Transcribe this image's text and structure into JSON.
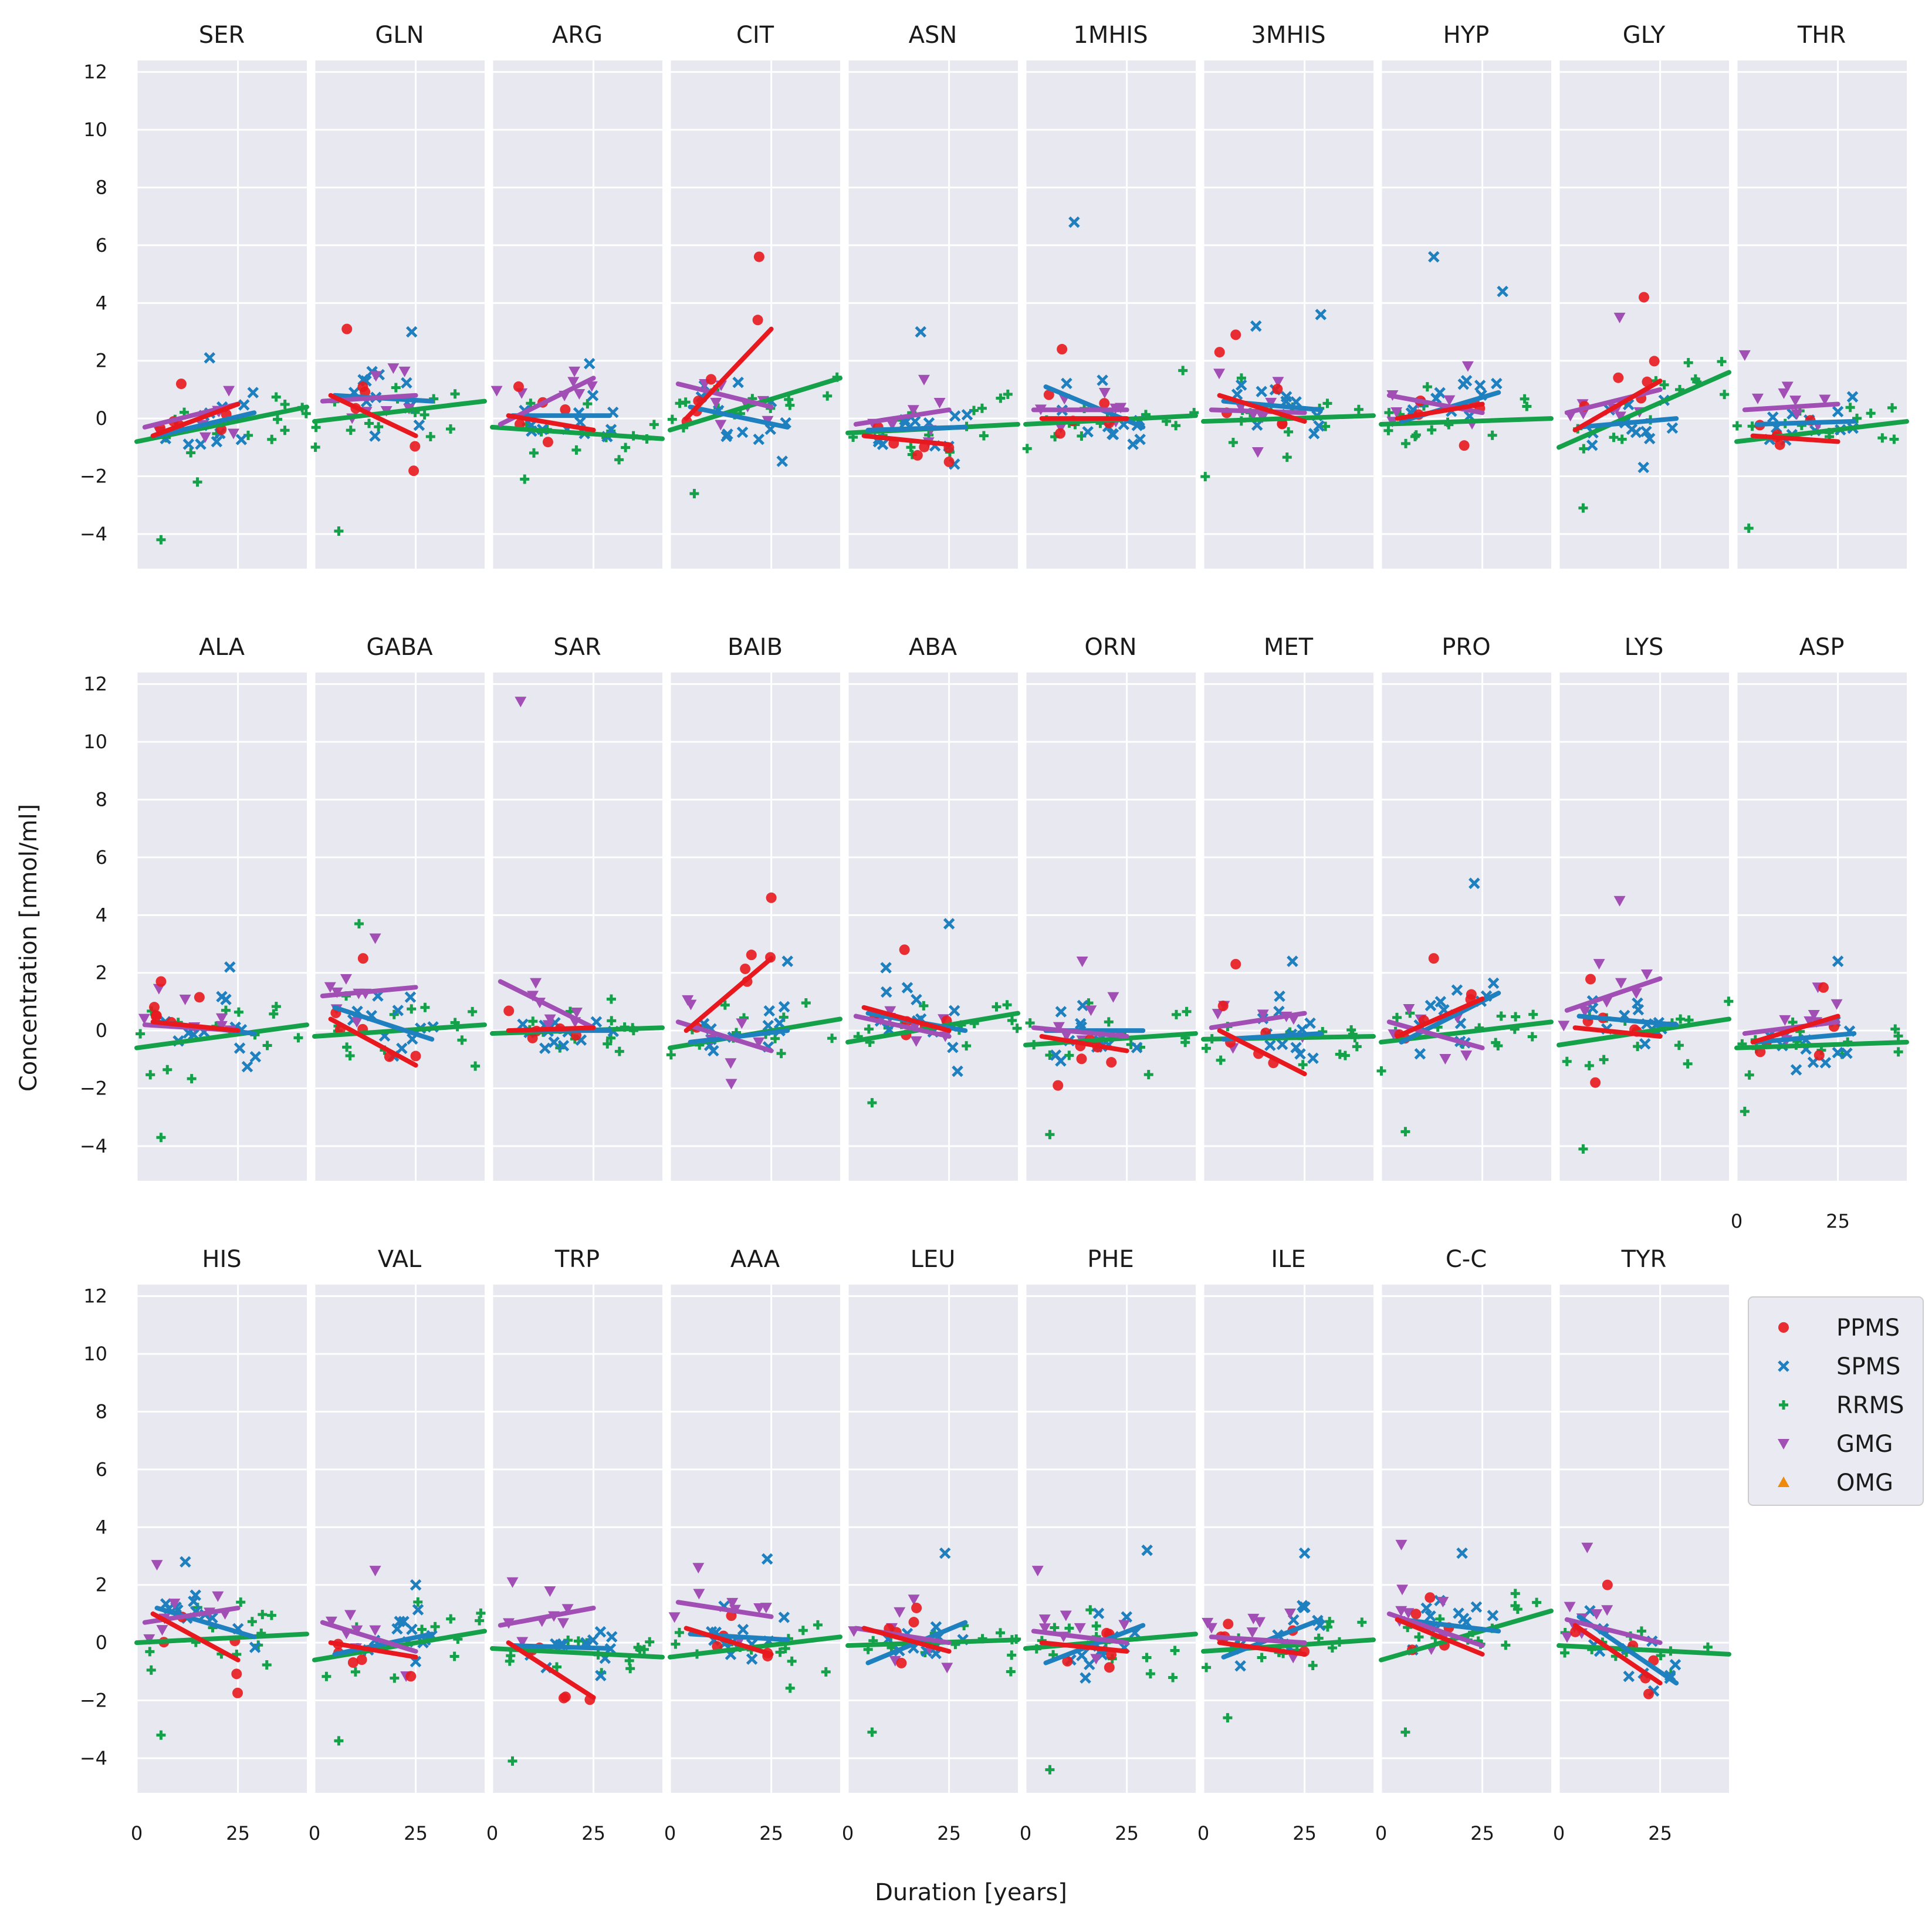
{
  "chart_data": {
    "type": "scatter",
    "description_axes": {
      "xlabel": "Duration [years]",
      "ylabel": "Concentration [nmol/ml]",
      "ylim": [
        -5.2,
        12.4
      ],
      "xlim": [
        0,
        42
      ],
      "yticks": [
        -4,
        -2,
        0,
        2,
        4,
        6,
        8,
        10,
        12
      ],
      "xticks": [
        0,
        25
      ]
    },
    "legend": {
      "placement": "right",
      "entries": [
        {
          "name": "PPMS",
          "color": "#e8191e",
          "marker": "circle"
        },
        {
          "name": "SPMS",
          "color": "#1f80c0",
          "marker": "x"
        },
        {
          "name": "RRMS",
          "color": "#14a14a",
          "marker": "plus"
        },
        {
          "name": "GMG",
          "color": "#a24fb5",
          "marker": "triangle-down"
        },
        {
          "name": "OMG",
          "color": "#f08a0a",
          "marker": "triangle-up"
        }
      ]
    },
    "panels": [
      {
        "name": "SER",
        "fits": {
          "PPMS": [
            -0.6,
            0.5
          ],
          "SPMS": [
            -0.6,
            0.2
          ],
          "RRMS": [
            -0.8,
            0.4
          ],
          "GMG": [
            -0.3,
            0.5
          ]
        },
        "extremes": [
          {
            "g": "RRMS",
            "x": 6,
            "y": -4.2
          },
          {
            "g": "PPMS",
            "x": 11,
            "y": 1.2
          },
          {
            "g": "SPMS",
            "x": 18,
            "y": 2.1
          },
          {
            "g": "RRMS",
            "x": 15,
            "y": -2.2
          }
        ]
      },
      {
        "name": "GLN",
        "fits": {
          "PPMS": [
            0.8,
            -0.6
          ],
          "SPMS": [
            0.8,
            0.6
          ],
          "RRMS": [
            -0.1,
            0.6
          ],
          "GMG": [
            0.6,
            0.8
          ]
        },
        "extremes": [
          {
            "g": "RRMS",
            "x": 6,
            "y": -3.9
          },
          {
            "g": "PPMS",
            "x": 8,
            "y": 3.1
          },
          {
            "g": "SPMS",
            "x": 24,
            "y": 3.0
          }
        ]
      },
      {
        "name": "ARG",
        "fits": {
          "PPMS": [
            0.1,
            -0.4
          ],
          "SPMS": [
            0.1,
            0.1
          ],
          "RRMS": [
            -0.3,
            -0.7
          ],
          "GMG": [
            -0.2,
            1.4
          ]
        },
        "extremes": [
          {
            "g": "RRMS",
            "x": 8,
            "y": -2.1
          },
          {
            "g": "SPMS",
            "x": 24,
            "y": 1.9
          }
        ]
      },
      {
        "name": "CIT",
        "fits": {
          "PPMS": [
            0.0,
            3.1
          ],
          "SPMS": [
            0.4,
            -0.3
          ],
          "RRMS": [
            -0.4,
            1.4
          ],
          "GMG": [
            1.2,
            0.4
          ]
        },
        "extremes": [
          {
            "g": "PPMS",
            "x": 22,
            "y": 5.6
          },
          {
            "g": "RRMS",
            "x": 6,
            "y": -2.6
          }
        ]
      },
      {
        "name": "ASN",
        "fits": {
          "PPMS": [
            -0.6,
            -0.9
          ],
          "SPMS": [
            -0.4,
            -0.3
          ],
          "RRMS": [
            -0.5,
            -0.2
          ],
          "GMG": [
            -0.2,
            0.3
          ]
        },
        "extremes": [
          {
            "g": "SPMS",
            "x": 18,
            "y": 3.0
          },
          {
            "g": "PPMS",
            "x": 25,
            "y": -1.5
          }
        ]
      },
      {
        "name": "1MHIS",
        "fits": {
          "PPMS": [
            0.0,
            0.0
          ],
          "SPMS": [
            1.1,
            -0.3
          ],
          "RRMS": [
            -0.2,
            0.1
          ],
          "GMG": [
            0.3,
            0.3
          ]
        },
        "extremes": [
          {
            "g": "SPMS",
            "x": 12,
            "y": 6.8
          },
          {
            "g": "PPMS",
            "x": 9,
            "y": 2.4
          }
        ]
      },
      {
        "name": "3MHIS",
        "fits": {
          "PPMS": [
            0.8,
            -0.1
          ],
          "SPMS": [
            0.6,
            0.3
          ],
          "RRMS": [
            -0.1,
            0.1
          ],
          "GMG": [
            0.3,
            0.2
          ]
        },
        "extremes": [
          {
            "g": "PPMS",
            "x": 8,
            "y": 2.9
          },
          {
            "g": "SPMS",
            "x": 29,
            "y": 3.6
          },
          {
            "g": "SPMS",
            "x": 13,
            "y": 3.2
          }
        ]
      },
      {
        "name": "HYP",
        "fits": {
          "PPMS": [
            0.0,
            0.5
          ],
          "SPMS": [
            -0.1,
            0.9
          ],
          "RRMS": [
            -0.2,
            0.0
          ],
          "GMG": [
            0.8,
            0.2
          ]
        },
        "extremes": [
          {
            "g": "SPMS",
            "x": 13,
            "y": 5.6
          },
          {
            "g": "SPMS",
            "x": 30,
            "y": 4.4
          }
        ]
      },
      {
        "name": "GLY",
        "fits": {
          "PPMS": [
            -0.4,
            1.3
          ],
          "SPMS": [
            -0.3,
            0.0
          ],
          "RRMS": [
            -1.0,
            1.6
          ],
          "GMG": [
            0.2,
            1.0
          ]
        },
        "extremes": [
          {
            "g": "PPMS",
            "x": 21,
            "y": 4.2
          },
          {
            "g": "GMG",
            "x": 15,
            "y": 3.5
          },
          {
            "g": "RRMS",
            "x": 6,
            "y": -3.1
          }
        ]
      },
      {
        "name": "THR",
        "fits": {
          "PPMS": [
            -0.6,
            -0.8
          ],
          "SPMS": [
            -0.2,
            -0.1
          ],
          "RRMS": [
            -0.8,
            -0.1
          ],
          "GMG": [
            0.3,
            0.5
          ]
        },
        "extremes": [
          {
            "g": "RRMS",
            "x": 3,
            "y": -3.8
          },
          {
            "g": "GMG",
            "x": 2,
            "y": 2.2
          }
        ]
      },
      {
        "name": "ALA",
        "fits": {
          "PPMS": [
            0.3,
            0.0
          ],
          "SPMS": [
            0.3,
            -0.1
          ],
          "RRMS": [
            -0.6,
            0.2
          ],
          "GMG": [
            0.2,
            0.0
          ]
        },
        "extremes": [
          {
            "g": "RRMS",
            "x": 6,
            "y": -3.7
          },
          {
            "g": "SPMS",
            "x": 23,
            "y": 2.2
          },
          {
            "g": "PPMS",
            "x": 6,
            "y": 1.7
          }
        ]
      },
      {
        "name": "GABA",
        "fits": {
          "PPMS": [
            0.4,
            -1.2
          ],
          "SPMS": [
            0.8,
            -0.3
          ],
          "RRMS": [
            -0.2,
            0.2
          ],
          "GMG": [
            1.2,
            1.5
          ]
        },
        "extremes": [
          {
            "g": "RRMS",
            "x": 11,
            "y": 3.7
          },
          {
            "g": "GMG",
            "x": 15,
            "y": 3.2
          },
          {
            "g": "PPMS",
            "x": 12,
            "y": 2.5
          }
        ]
      },
      {
        "name": "SAR",
        "fits": {
          "PPMS": [
            0.0,
            0.1
          ],
          "SPMS": [
            0.0,
            0.0
          ],
          "RRMS": [
            -0.1,
            0.1
          ],
          "GMG": [
            1.7,
            0.1
          ]
        },
        "extremes": [
          {
            "g": "GMG",
            "x": 7,
            "y": 11.4
          }
        ]
      },
      {
        "name": "BAIB",
        "fits": {
          "PPMS": [
            0.0,
            2.5
          ],
          "SPMS": [
            -0.4,
            0.0
          ],
          "RRMS": [
            -0.6,
            0.4
          ],
          "GMG": [
            0.3,
            -0.7
          ]
        },
        "extremes": [
          {
            "g": "PPMS",
            "x": 25,
            "y": 4.6
          },
          {
            "g": "SPMS",
            "x": 29,
            "y": 2.4
          }
        ]
      },
      {
        "name": "ABA",
        "fits": {
          "PPMS": [
            0.8,
            0.0
          ],
          "SPMS": [
            0.6,
            0.0
          ],
          "RRMS": [
            -0.4,
            0.6
          ],
          "GMG": [
            0.5,
            -0.2
          ]
        },
        "extremes": [
          {
            "g": "SPMS",
            "x": 25,
            "y": 3.7
          },
          {
            "g": "PPMS",
            "x": 14,
            "y": 2.8
          },
          {
            "g": "RRMS",
            "x": 6,
            "y": -2.5
          }
        ]
      },
      {
        "name": "ORN",
        "fits": {
          "PPMS": [
            -0.2,
            -0.7
          ],
          "SPMS": [
            0.0,
            0.0
          ],
          "RRMS": [
            -0.5,
            -0.1
          ],
          "GMG": [
            0.1,
            -0.2
          ]
        },
        "extremes": [
          {
            "g": "RRMS",
            "x": 6,
            "y": -3.6
          },
          {
            "g": "GMG",
            "x": 14,
            "y": 2.4
          },
          {
            "g": "PPMS",
            "x": 8,
            "y": -1.9
          }
        ]
      },
      {
        "name": "MET",
        "fits": {
          "PPMS": [
            0.0,
            -1.5
          ],
          "SPMS": [
            -0.3,
            -0.1
          ],
          "RRMS": [
            -0.3,
            -0.2
          ],
          "GMG": [
            0.1,
            0.6
          ]
        },
        "extremes": [
          {
            "g": "PPMS",
            "x": 8,
            "y": 2.3
          },
          {
            "g": "SPMS",
            "x": 22,
            "y": 2.4
          }
        ]
      },
      {
        "name": "PRO",
        "fits": {
          "PPMS": [
            -0.2,
            1.1
          ],
          "SPMS": [
            -0.4,
            1.3
          ],
          "RRMS": [
            -0.4,
            0.3
          ],
          "GMG": [
            0.3,
            -0.6
          ]
        },
        "extremes": [
          {
            "g": "SPMS",
            "x": 23,
            "y": 5.1
          },
          {
            "g": "RRMS",
            "x": 6,
            "y": -3.5
          },
          {
            "g": "PPMS",
            "x": 13,
            "y": 2.5
          }
        ]
      },
      {
        "name": "LYS",
        "fits": {
          "PPMS": [
            0.1,
            -0.2
          ],
          "SPMS": [
            0.5,
            0.2
          ],
          "RRMS": [
            -0.5,
            0.4
          ],
          "GMG": [
            0.7,
            1.8
          ]
        },
        "extremes": [
          {
            "g": "GMG",
            "x": 15,
            "y": 4.5
          },
          {
            "g": "RRMS",
            "x": 6,
            "y": -4.1
          },
          {
            "g": "PPMS",
            "x": 9,
            "y": -1.8
          }
        ]
      },
      {
        "name": "ASP",
        "fits": {
          "PPMS": [
            -0.4,
            0.5
          ],
          "SPMS": [
            -0.4,
            -0.1
          ],
          "RRMS": [
            -0.6,
            -0.4
          ],
          "GMG": [
            -0.1,
            0.3
          ]
        },
        "extremes": [
          {
            "g": "RRMS",
            "x": 2,
            "y": -2.8
          },
          {
            "g": "SPMS",
            "x": 25,
            "y": 2.4
          }
        ]
      },
      {
        "name": "HIS",
        "fits": {
          "PPMS": [
            1.0,
            -0.6
          ],
          "SPMS": [
            1.2,
            0.2
          ],
          "RRMS": [
            0.0,
            0.3
          ],
          "GMG": [
            0.7,
            1.2
          ]
        },
        "extremes": [
          {
            "g": "RRMS",
            "x": 6,
            "y": -3.2
          },
          {
            "g": "GMG",
            "x": 5,
            "y": 2.7
          },
          {
            "g": "SPMS",
            "x": 12,
            "y": 2.8
          }
        ]
      },
      {
        "name": "VAL",
        "fits": {
          "PPMS": [
            0.0,
            -0.5
          ],
          "SPMS": [
            -0.4,
            0.3
          ],
          "RRMS": [
            -0.6,
            0.4
          ],
          "GMG": [
            0.7,
            -0.3
          ]
        },
        "extremes": [
          {
            "g": "RRMS",
            "x": 6,
            "y": -3.4
          },
          {
            "g": "GMG",
            "x": 15,
            "y": 2.5
          },
          {
            "g": "SPMS",
            "x": 25,
            "y": 2.0
          }
        ]
      },
      {
        "name": "TRP",
        "fits": {
          "PPMS": [
            0.0,
            -1.9
          ],
          "SPMS": [
            -0.1,
            -0.2
          ],
          "RRMS": [
            -0.2,
            -0.5
          ],
          "GMG": [
            0.6,
            1.2
          ]
        },
        "extremes": [
          {
            "g": "RRMS",
            "x": 5,
            "y": -4.1
          },
          {
            "g": "GMG",
            "x": 5,
            "y": 2.1
          }
        ]
      },
      {
        "name": "AAA",
        "fits": {
          "PPMS": [
            0.5,
            -0.4
          ],
          "SPMS": [
            0.3,
            0.1
          ],
          "RRMS": [
            -0.5,
            0.2
          ],
          "GMG": [
            1.4,
            0.9
          ]
        },
        "extremes": [
          {
            "g": "SPMS",
            "x": 24,
            "y": 2.9
          },
          {
            "g": "GMG",
            "x": 7,
            "y": 2.6
          }
        ]
      },
      {
        "name": "LEU",
        "fits": {
          "PPMS": [
            0.5,
            -0.3
          ],
          "SPMS": [
            -0.7,
            0.7
          ],
          "RRMS": [
            -0.1,
            0.1
          ],
          "GMG": [
            0.5,
            0.0
          ]
        },
        "extremes": [
          {
            "g": "RRMS",
            "x": 6,
            "y": -3.1
          },
          {
            "g": "SPMS",
            "x": 24,
            "y": 3.1
          }
        ]
      },
      {
        "name": "PHE",
        "fits": {
          "PPMS": [
            0.0,
            -0.3
          ],
          "SPMS": [
            -0.7,
            0.6
          ],
          "RRMS": [
            -0.2,
            0.3
          ],
          "GMG": [
            0.4,
            0.0
          ]
        },
        "extremes": [
          {
            "g": "RRMS",
            "x": 6,
            "y": -4.4
          },
          {
            "g": "SPMS",
            "x": 30,
            "y": 3.2
          },
          {
            "g": "GMG",
            "x": 3,
            "y": 2.5
          }
        ]
      },
      {
        "name": "ILE",
        "fits": {
          "PPMS": [
            0.0,
            -0.4
          ],
          "SPMS": [
            -0.5,
            0.8
          ],
          "RRMS": [
            -0.3,
            0.1
          ],
          "GMG": [
            0.2,
            0.0
          ]
        },
        "extremes": [
          {
            "g": "RRMS",
            "x": 6,
            "y": -2.6
          },
          {
            "g": "SPMS",
            "x": 25,
            "y": 3.1
          }
        ]
      },
      {
        "name": "C-C",
        "fits": {
          "PPMS": [
            0.8,
            -0.4
          ],
          "SPMS": [
            0.8,
            0.4
          ],
          "RRMS": [
            -0.6,
            1.1
          ],
          "GMG": [
            1.0,
            -0.1
          ]
        },
        "extremes": [
          {
            "g": "GMG",
            "x": 5,
            "y": 3.4
          },
          {
            "g": "RRMS",
            "x": 6,
            "y": -3.1
          },
          {
            "g": "SPMS",
            "x": 20,
            "y": 3.1
          }
        ]
      },
      {
        "name": "TYR",
        "fits": {
          "PPMS": [
            0.6,
            -1.4
          ],
          "SPMS": [
            0.9,
            -1.4
          ],
          "RRMS": [
            -0.1,
            -0.4
          ],
          "GMG": [
            0.8,
            0.0
          ]
        },
        "extremes": [
          {
            "g": "GMG",
            "x": 7,
            "y": 3.3
          },
          {
            "g": "PPMS",
            "x": 12,
            "y": 2.0
          }
        ]
      }
    ]
  }
}
